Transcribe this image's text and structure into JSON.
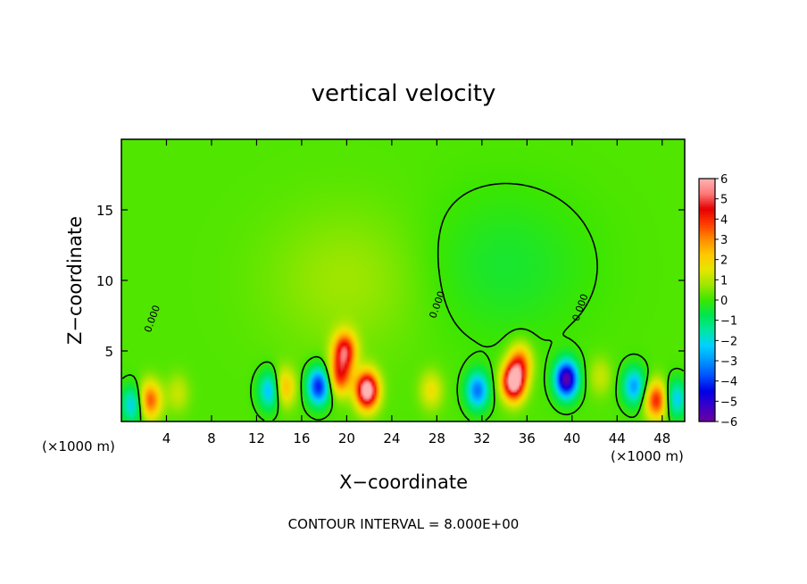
{
  "chart_data": {
    "type": "heatmap",
    "title": "vertical velocity",
    "xlabel": "X−coordinate",
    "ylabel": "Z−coordinate",
    "x_unit_left": "(×1000 m)",
    "x_unit_right": "(×1000 m)",
    "xlim": [
      0,
      50
    ],
    "ylim": [
      0,
      20
    ],
    "x_ticks": [
      4,
      8,
      12,
      16,
      20,
      24,
      28,
      32,
      36,
      40,
      44,
      48
    ],
    "x_tick_labels": [
      "4",
      "8",
      "12",
      "16",
      "20",
      "24",
      "28",
      "32",
      "36",
      "40",
      "44",
      "48"
    ],
    "y_ticks": [
      5,
      10,
      15
    ],
    "y_tick_labels": [
      "5",
      "10",
      "15"
    ],
    "contour_interval_text": "CONTOUR INTERVAL = 8.000E+00",
    "contour_labels": [
      "0.000",
      "0.000",
      "0.000"
    ],
    "colorbar": {
      "min": -6,
      "max": 6,
      "ticks": [
        6,
        5,
        4,
        3,
        2,
        1,
        0,
        -1,
        -2,
        -3,
        -4,
        -5,
        -6
      ],
      "tick_labels": [
        "6",
        "5",
        "4",
        "3",
        "2",
        "1",
        "0",
        "−1",
        "−2",
        "−3",
        "−4",
        "−5",
        "−6"
      ],
      "colors": [
        "#6a00a0",
        "#3c00c8",
        "#0000e6",
        "#0050ff",
        "#0096ff",
        "#00d2ff",
        "#00e6a0",
        "#00e650",
        "#3ce600",
        "#a0e600",
        "#e6e600",
        "#ffc800",
        "#ff8c00",
        "#ff3c00",
        "#e60000",
        "#ff7878",
        "#ffb4b4"
      ]
    },
    "features": [
      {
        "x": 2.5,
        "z": 1.5,
        "w": 3.5
      },
      {
        "x": 1.0,
        "z": 1.2,
        "w": -2.5
      },
      {
        "x": 5.0,
        "z": 2.0,
        "w": 1.0
      },
      {
        "x": 13.2,
        "z": 2.2,
        "w": -3.0
      },
      {
        "x": 14.4,
        "z": 2.4,
        "w": 2.5
      },
      {
        "x": 17.5,
        "z": 2.5,
        "w": -4.5
      },
      {
        "x": 19.8,
        "z": 5.0,
        "w": 4.5
      },
      {
        "x": 21.8,
        "z": 2.2,
        "w": 6.5
      },
      {
        "x": 19.4,
        "z": 3.2,
        "w": 3.5
      },
      {
        "x": 27.5,
        "z": 2.2,
        "w": 1.5
      },
      {
        "x": 31.6,
        "z": 2.2,
        "w": -3.5
      },
      {
        "x": 34.8,
        "z": 2.8,
        "w": 6.5
      },
      {
        "x": 35.4,
        "z": 4.2,
        "w": 3.0
      },
      {
        "x": 39.5,
        "z": 3.0,
        "w": -6.0
      },
      {
        "x": 42.5,
        "z": 3.2,
        "w": 1.0
      },
      {
        "x": 45.5,
        "z": 2.5,
        "w": -3.0
      },
      {
        "x": 47.5,
        "z": 1.5,
        "w": 4.0
      },
      {
        "x": 49.2,
        "z": 1.6,
        "w": -2.5
      },
      {
        "x": 20.0,
        "z": 10.0,
        "w": 0.6
      },
      {
        "x": 34.0,
        "z": 11.0,
        "w": -0.6
      }
    ]
  }
}
